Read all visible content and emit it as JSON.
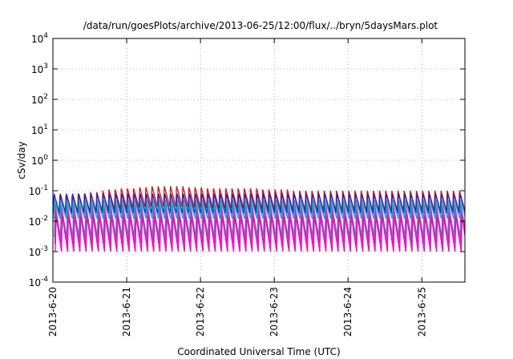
{
  "chart_data": {
    "type": "line",
    "title": "/data/run/goesPlots/archive/2013-06-25/12:00/flux/../bryn/5daysMars.plot",
    "xlabel": "Coordinated Universal Time (UTC)",
    "ylabel": "cSv/day",
    "y_scale": "log",
    "ylim": [
      0.0001,
      10000
    ],
    "y_ticks": [
      {
        "value": 0.0001,
        "base": "10",
        "exp": "-4"
      },
      {
        "value": 0.001,
        "base": "10",
        "exp": "-3"
      },
      {
        "value": 0.01,
        "base": "10",
        "exp": "-2"
      },
      {
        "value": 0.1,
        "base": "10",
        "exp": "-1"
      },
      {
        "value": 1,
        "base": "10",
        "exp": "0"
      },
      {
        "value": 10,
        "base": "10",
        "exp": "1"
      },
      {
        "value": 100,
        "base": "10",
        "exp": "2"
      },
      {
        "value": 1000,
        "base": "10",
        "exp": "3"
      },
      {
        "value": 10000,
        "base": "10",
        "exp": "4"
      }
    ],
    "xlim": [
      "2013-06-20T00:00",
      "2013-06-25T14:00"
    ],
    "x_ticks": [
      "2013-6-20",
      "2013-6-21",
      "2013-6-22",
      "2013-6-23",
      "2013-6-24",
      "2013-6-25"
    ],
    "grid": true,
    "legend": "none",
    "sawtooth_period_hours": 2,
    "series": [
      {
        "color": "#e01010",
        "peaks": [
          0.06,
          0.07,
          0.07,
          0.07,
          0.08,
          0.08,
          0.09,
          0.09,
          0.1,
          0.11,
          0.11,
          0.12,
          0.12,
          0.12,
          0.13,
          0.13,
          0.14,
          0.14,
          0.14,
          0.14,
          0.14,
          0.14,
          0.13,
          0.13,
          0.13,
          0.12,
          0.12,
          0.12,
          0.12,
          0.12,
          0.12,
          0.12,
          0.12,
          0.12,
          0.11,
          0.11,
          0.11,
          0.11,
          0.11,
          0.1,
          0.1,
          0.1,
          0.1,
          0.1,
          0.1,
          0.1,
          0.1,
          0.1,
          0.1,
          0.1,
          0.1,
          0.1,
          0.1,
          0.1,
          0.1,
          0.1,
          0.1,
          0.1,
          0.1,
          0.1,
          0.1,
          0.1,
          0.1,
          0.1,
          0.1,
          0.1,
          0.1
        ],
        "troughs": [
          0.015,
          0.015,
          0.016,
          0.017,
          0.018,
          0.019,
          0.02,
          0.021,
          0.022,
          0.023,
          0.024,
          0.025,
          0.026,
          0.027,
          0.028,
          0.029,
          0.03,
          0.03,
          0.03,
          0.03,
          0.03,
          0.03,
          0.029,
          0.028,
          0.028,
          0.027,
          0.027,
          0.026,
          0.026,
          0.026,
          0.026,
          0.026,
          0.025,
          0.025,
          0.025,
          0.024,
          0.024,
          0.024,
          0.024,
          0.023,
          0.023,
          0.023,
          0.023,
          0.022,
          0.022,
          0.022,
          0.022,
          0.022,
          0.022,
          0.022,
          0.022,
          0.022,
          0.022,
          0.022,
          0.022,
          0.022,
          0.022,
          0.022,
          0.022,
          0.022,
          0.022,
          0.022,
          0.022,
          0.022,
          0.022,
          0.022,
          0.022
        ]
      },
      {
        "color": "#2222cc",
        "peaks": [
          0.08,
          0.08,
          0.08,
          0.08,
          0.08,
          0.08,
          0.08,
          0.08,
          0.08,
          0.08,
          0.08,
          0.08,
          0.08,
          0.08,
          0.08,
          0.08,
          0.08,
          0.08,
          0.08,
          0.08,
          0.08,
          0.08,
          0.08,
          0.08,
          0.08,
          0.08,
          0.08,
          0.08,
          0.08,
          0.08,
          0.08,
          0.08,
          0.08,
          0.08,
          0.08,
          0.08,
          0.08,
          0.08,
          0.08,
          0.08,
          0.08,
          0.08,
          0.08,
          0.08,
          0.08,
          0.08,
          0.08,
          0.08,
          0.08,
          0.08,
          0.08,
          0.08,
          0.08,
          0.08,
          0.08,
          0.08,
          0.08,
          0.08,
          0.08,
          0.08,
          0.08,
          0.08,
          0.08,
          0.08,
          0.08,
          0.08,
          0.08
        ],
        "troughs": [
          0.018,
          0.018,
          0.018,
          0.018,
          0.018,
          0.018,
          0.018,
          0.018,
          0.018,
          0.018,
          0.018,
          0.018,
          0.018,
          0.018,
          0.018,
          0.018,
          0.018,
          0.018,
          0.018,
          0.018,
          0.018,
          0.018,
          0.018,
          0.018,
          0.018,
          0.018,
          0.018,
          0.018,
          0.018,
          0.018,
          0.018,
          0.018,
          0.018,
          0.018,
          0.018,
          0.018,
          0.018,
          0.018,
          0.018,
          0.018,
          0.018,
          0.018,
          0.018,
          0.018,
          0.018,
          0.018,
          0.018,
          0.018,
          0.018,
          0.018,
          0.018,
          0.018,
          0.018,
          0.018,
          0.018,
          0.018,
          0.018,
          0.018,
          0.018,
          0.018,
          0.018,
          0.018,
          0.018,
          0.018,
          0.018,
          0.018,
          0.018
        ]
      },
      {
        "color": "#1fa8e8",
        "peaks": [
          0.05,
          0.05,
          0.05,
          0.05,
          0.05,
          0.05,
          0.05,
          0.05,
          0.05,
          0.05,
          0.05,
          0.05,
          0.05,
          0.05,
          0.05,
          0.05,
          0.05,
          0.05,
          0.05,
          0.05,
          0.05,
          0.05,
          0.05,
          0.05,
          0.05,
          0.05,
          0.05,
          0.05,
          0.05,
          0.05,
          0.05,
          0.05,
          0.05,
          0.05,
          0.05,
          0.05,
          0.05,
          0.05,
          0.05,
          0.05,
          0.05,
          0.05,
          0.05,
          0.05,
          0.05,
          0.05,
          0.05,
          0.05,
          0.05,
          0.05,
          0.05,
          0.05,
          0.05,
          0.05,
          0.05,
          0.05,
          0.05,
          0.05,
          0.05,
          0.05,
          0.05,
          0.05,
          0.05,
          0.05,
          0.05,
          0.05,
          0.05
        ],
        "troughs": [
          0.012,
          0.012,
          0.012,
          0.012,
          0.012,
          0.012,
          0.012,
          0.012,
          0.012,
          0.012,
          0.012,
          0.012,
          0.012,
          0.012,
          0.012,
          0.012,
          0.012,
          0.012,
          0.012,
          0.012,
          0.012,
          0.012,
          0.012,
          0.012,
          0.012,
          0.012,
          0.012,
          0.012,
          0.012,
          0.012,
          0.012,
          0.012,
          0.012,
          0.012,
          0.012,
          0.012,
          0.012,
          0.012,
          0.012,
          0.012,
          0.012,
          0.012,
          0.012,
          0.012,
          0.012,
          0.012,
          0.012,
          0.012,
          0.012,
          0.012,
          0.012,
          0.012,
          0.012,
          0.012,
          0.012,
          0.012,
          0.012,
          0.012,
          0.012,
          0.012,
          0.012,
          0.012,
          0.012,
          0.012,
          0.012,
          0.012,
          0.012
        ]
      },
      {
        "color": "#18a88a",
        "peaks": [
          0.035,
          0.035,
          0.035,
          0.035,
          0.035,
          0.035,
          0.035,
          0.035,
          0.035,
          0.035,
          0.035,
          0.035,
          0.035,
          0.035,
          0.035,
          0.035,
          0.035,
          0.035,
          0.035,
          0.035,
          0.035,
          0.035,
          0.035,
          0.035,
          0.035,
          0.035,
          0.035,
          0.035,
          0.035,
          0.035,
          0.035,
          0.035,
          0.035,
          0.035,
          0.035,
          0.035,
          0.035,
          0.035,
          0.035,
          0.035,
          0.035,
          0.035,
          0.035,
          0.035,
          0.035,
          0.035,
          0.035,
          0.035,
          0.035,
          0.035,
          0.035,
          0.035,
          0.035,
          0.035,
          0.035,
          0.035,
          0.035,
          0.035,
          0.035,
          0.035,
          0.035,
          0.035,
          0.035,
          0.035,
          0.035,
          0.035,
          0.035
        ],
        "troughs": [
          0.003,
          0.003,
          0.003,
          0.003,
          0.003,
          0.003,
          0.003,
          0.003,
          0.003,
          0.003,
          0.003,
          0.003,
          0.003,
          0.003,
          0.003,
          0.003,
          0.003,
          0.003,
          0.003,
          0.003,
          0.003,
          0.003,
          0.003,
          0.003,
          0.003,
          0.003,
          0.003,
          0.003,
          0.003,
          0.003,
          0.003,
          0.003,
          0.003,
          0.003,
          0.003,
          0.003,
          0.003,
          0.003,
          0.003,
          0.003,
          0.003,
          0.003,
          0.003,
          0.003,
          0.003,
          0.003,
          0.003,
          0.003,
          0.003,
          0.003,
          0.003,
          0.003,
          0.003,
          0.003,
          0.003,
          0.003,
          0.003,
          0.003,
          0.003,
          0.003,
          0.003,
          0.003,
          0.003,
          0.003,
          0.003,
          0.003,
          0.003
        ]
      },
      {
        "color": "#dd22dd",
        "peaks": [
          0.025,
          0.025,
          0.025,
          0.025,
          0.025,
          0.025,
          0.025,
          0.025,
          0.025,
          0.025,
          0.025,
          0.025,
          0.025,
          0.025,
          0.025,
          0.025,
          0.025,
          0.025,
          0.025,
          0.025,
          0.025,
          0.025,
          0.025,
          0.025,
          0.025,
          0.025,
          0.025,
          0.025,
          0.025,
          0.025,
          0.025,
          0.025,
          0.025,
          0.025,
          0.025,
          0.025,
          0.025,
          0.025,
          0.025,
          0.025,
          0.025,
          0.025,
          0.025,
          0.025,
          0.025,
          0.025,
          0.025,
          0.025,
          0.025,
          0.025,
          0.025,
          0.025,
          0.025,
          0.025,
          0.025,
          0.025,
          0.025,
          0.025,
          0.025,
          0.025,
          0.025,
          0.025,
          0.025,
          0.025,
          0.025,
          0.025,
          0.025
        ],
        "troughs": [
          0.0018,
          0.0018,
          0.0018,
          0.0018,
          0.0018,
          0.0018,
          0.0018,
          0.0018,
          0.0018,
          0.0018,
          0.0018,
          0.0018,
          0.0018,
          0.0018,
          0.0018,
          0.0018,
          0.0018,
          0.0018,
          0.0018,
          0.0018,
          0.0018,
          0.0018,
          0.0018,
          0.0018,
          0.0018,
          0.0018,
          0.0018,
          0.0018,
          0.0018,
          0.0018,
          0.0018,
          0.0018,
          0.0018,
          0.0018,
          0.0018,
          0.0018,
          0.0018,
          0.0018,
          0.0018,
          0.0018,
          0.0018,
          0.0018,
          0.0018,
          0.0018,
          0.0018,
          0.0018,
          0.0018,
          0.0018,
          0.0018,
          0.0018,
          0.0018,
          0.0018,
          0.0018,
          0.0018,
          0.0018,
          0.0018,
          0.0018,
          0.0018,
          0.0018,
          0.0018,
          0.0018,
          0.0018,
          0.0018,
          0.0018,
          0.0018,
          0.0018,
          0.0018
        ]
      },
      {
        "color": "#ff00cc",
        "peaks": [
          0.015,
          0.015,
          0.015,
          0.015,
          0.015,
          0.015,
          0.015,
          0.015,
          0.015,
          0.015,
          0.015,
          0.015,
          0.015,
          0.015,
          0.015,
          0.015,
          0.015,
          0.015,
          0.015,
          0.015,
          0.015,
          0.015,
          0.015,
          0.015,
          0.015,
          0.015,
          0.015,
          0.015,
          0.015,
          0.015,
          0.015,
          0.015,
          0.015,
          0.015,
          0.015,
          0.015,
          0.015,
          0.015,
          0.015,
          0.015,
          0.015,
          0.015,
          0.015,
          0.015,
          0.015,
          0.015,
          0.015,
          0.015,
          0.015,
          0.015,
          0.015,
          0.015,
          0.015,
          0.015,
          0.015,
          0.015,
          0.015,
          0.015,
          0.015,
          0.015,
          0.015,
          0.015,
          0.015,
          0.015,
          0.015,
          0.015,
          0.015
        ],
        "troughs": [
          0.001,
          0.001,
          0.001,
          0.001,
          0.001,
          0.001,
          0.001,
          0.001,
          0.001,
          0.001,
          0.001,
          0.001,
          0.001,
          0.001,
          0.001,
          0.001,
          0.001,
          0.001,
          0.001,
          0.001,
          0.001,
          0.001,
          0.001,
          0.001,
          0.001,
          0.001,
          0.001,
          0.001,
          0.001,
          0.001,
          0.001,
          0.001,
          0.001,
          0.001,
          0.001,
          0.001,
          0.001,
          0.001,
          0.001,
          0.001,
          0.001,
          0.001,
          0.001,
          0.001,
          0.001,
          0.001,
          0.001,
          0.001,
          0.001,
          0.001,
          0.001,
          0.001,
          0.001,
          0.001,
          0.001,
          0.001,
          0.001,
          0.001,
          0.001,
          0.001,
          0.001,
          0.001,
          0.001,
          0.001,
          0.001,
          0.001,
          0.001
        ]
      }
    ]
  }
}
